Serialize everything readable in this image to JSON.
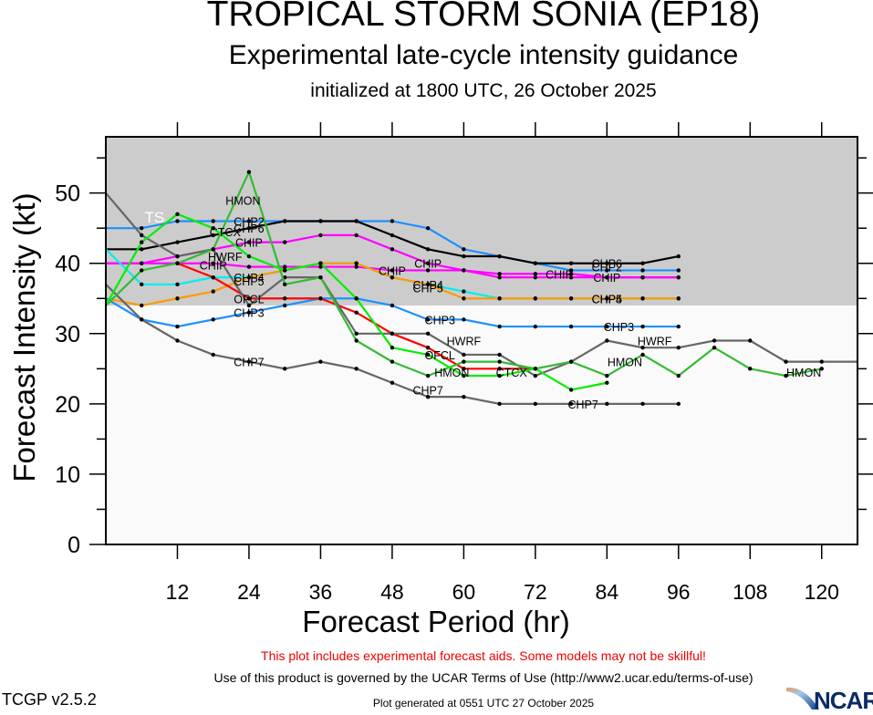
{
  "titles": {
    "main": "TROPICAL STORM SONIA (EP18)",
    "sub": "Experimental late-cycle intensity guidance",
    "init": "initialized at 1800 UTC, 26 October 2025"
  },
  "footer": {
    "warning": "This plot includes experimental forecast aids. Some models may not be skillful!",
    "terms": "Use of this product is governed by the UCAR Terms of Use (http://www2.ucar.edu/terms-of-use)",
    "generated": "Plot generated at 0551 UTC   27 October 2025",
    "version": "TCGP v2.5.2",
    "logo": "NCAR"
  },
  "chart_data": {
    "type": "line",
    "title": "TROPICAL STORM SONIA (EP18)",
    "xlabel": "Forecast Period (hr)",
    "ylabel": "Forecast Intensity (kt)",
    "xlim": [
      0,
      126
    ],
    "ylim": [
      0,
      58
    ],
    "xticks": [
      12,
      24,
      36,
      48,
      60,
      72,
      84,
      96,
      108,
      120
    ],
    "yticks": [
      0,
      10,
      20,
      30,
      40,
      50
    ],
    "shaded_band": {
      "label": "TS",
      "from": 34,
      "to": 58,
      "color": "#cccccc"
    },
    "x_step_hr": 6,
    "series": [
      {
        "name": "CHP2",
        "color": "#1e90ff",
        "start": 0,
        "values": [
          45,
          45,
          46,
          46,
          46,
          46,
          46,
          46,
          46,
          45,
          42,
          41,
          40,
          39,
          39,
          39,
          39
        ],
        "labels": [
          [
            24,
            46
          ],
          [
            84,
            39.5
          ]
        ]
      },
      {
        "name": "CHP6",
        "color": "#000000",
        "start": 0,
        "values": [
          42,
          42,
          43,
          44,
          45,
          46,
          46,
          46,
          44,
          42,
          41,
          41,
          40,
          40,
          40,
          40,
          41
        ],
        "labels": [
          [
            24,
            45
          ],
          [
            84,
            40
          ]
        ]
      },
      {
        "name": "CHIP",
        "color": "#ff00ff",
        "start": 0,
        "values": [
          40,
          40,
          41,
          42,
          43,
          43,
          44,
          44,
          42,
          40,
          39,
          38,
          38,
          38,
          38,
          38,
          38
        ],
        "labels": [
          [
            24,
            43
          ],
          [
            54,
            40
          ],
          [
            84,
            38
          ]
        ]
      },
      {
        "name": "CHIP",
        "color": "#ff00ff",
        "start": 0,
        "values": [
          40,
          40,
          40,
          40,
          39.5,
          39.5,
          39.5,
          39.5,
          39,
          39,
          39,
          38.5,
          38.5,
          38.5,
          38,
          38,
          38
        ],
        "labels": [
          [
            18,
            39.8
          ],
          [
            48,
            39
          ],
          [
            76,
            38.5
          ]
        ]
      },
      {
        "name": "CHP5",
        "color": "#00eeee",
        "start": 0,
        "values": [
          42,
          37,
          37,
          38,
          38,
          39,
          40,
          40,
          38,
          37,
          36,
          35,
          35,
          35,
          35,
          35,
          35
        ],
        "labels": [
          [
            24,
            37.5
          ],
          [
            54,
            36.5
          ],
          [
            84,
            35
          ]
        ]
      },
      {
        "name": "CHP4",
        "color": "#ff9900",
        "start": 0,
        "values": [
          35,
          34,
          35,
          36,
          38,
          39,
          40,
          40,
          38,
          37,
          35,
          35,
          35,
          35,
          35,
          35,
          35
        ],
        "labels": [
          [
            24,
            38
          ],
          [
            54,
            37
          ],
          [
            84,
            35
          ]
        ]
      },
      {
        "name": "CHP3",
        "color": "#1e90ff",
        "start": 0,
        "values": [
          35,
          32,
          31,
          32,
          33,
          34,
          35,
          35,
          34,
          32,
          32,
          31,
          31,
          31,
          31,
          31,
          31
        ],
        "labels": [
          [
            24,
            33
          ],
          [
            56,
            32
          ],
          [
            86,
            31
          ]
        ]
      },
      {
        "name": "CHP7",
        "color": "#666666",
        "start": 0,
        "values": [
          37,
          32,
          29,
          27,
          26,
          25,
          26,
          25,
          23,
          21,
          21,
          20,
          20,
          20,
          20,
          20,
          20
        ],
        "labels": [
          [
            24,
            26
          ],
          [
            54,
            22
          ],
          [
            80,
            20
          ]
        ]
      },
      {
        "name": "OFCL",
        "color": "#ff0000",
        "start": 12,
        "values": [
          40,
          38,
          35,
          35,
          35,
          33,
          30,
          28,
          25,
          25,
          25
        ],
        "labels": [
          [
            24,
            35
          ],
          [
            56,
            27
          ]
        ]
      },
      {
        "name": "HWRF",
        "color": "#666666",
        "start": 0,
        "values": [
          50,
          44,
          41,
          42,
          34,
          38,
          38,
          30,
          30,
          30,
          27,
          27,
          24,
          26,
          29,
          28,
          28,
          29,
          29,
          26,
          26,
          26
        ],
        "labels": [
          [
            20,
            41
          ],
          [
            60,
            29
          ],
          [
            92,
            29
          ]
        ]
      },
      {
        "name": "HMON",
        "color": "#33bb33",
        "start": 0,
        "values": [
          34,
          39,
          40,
          42,
          53,
          37,
          38,
          29,
          26,
          24,
          26,
          26,
          25,
          26,
          24,
          27,
          24,
          28,
          25,
          24,
          25
        ],
        "labels": [
          [
            23,
            49
          ],
          [
            58,
            24.5
          ],
          [
            87,
            26
          ],
          [
            117,
            24.5
          ]
        ]
      },
      {
        "name": "CTCX",
        "color": "#00ee00",
        "start": 0,
        "values": [
          34,
          43,
          47,
          45,
          41,
          39,
          40,
          35,
          28,
          27,
          24,
          24,
          25,
          22,
          23
        ],
        "labels": [
          [
            20,
            44.5
          ],
          [
            68,
            24.5
          ]
        ]
      }
    ]
  }
}
